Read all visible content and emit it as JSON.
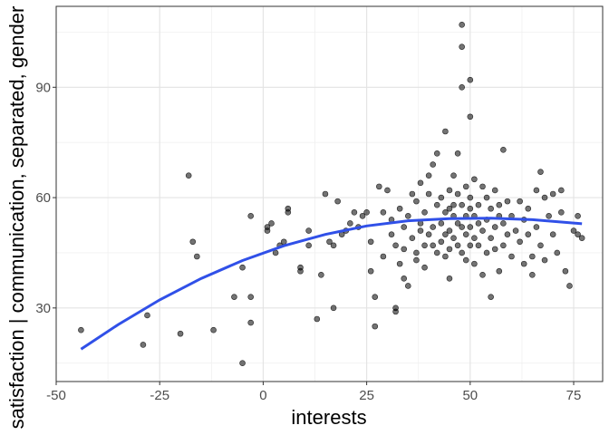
{
  "chart_data": {
    "type": "scatter",
    "xlabel": "interests",
    "ylabel": "satisfaction | communication, separated, gender",
    "xlim": [
      -50,
      82
    ],
    "ylim": [
      10,
      112
    ],
    "x_ticks": [
      -50,
      -25,
      0,
      25,
      50,
      75
    ],
    "x_tick_labels": [
      "-50",
      "-25",
      "0",
      "25",
      "50",
      "75"
    ],
    "y_ticks": [
      30,
      60,
      90
    ],
    "y_tick_labels": [
      "30",
      "60",
      "90"
    ],
    "grid": true,
    "point_color": "#000000",
    "line_color": "#3050e8",
    "points": [
      [
        -44,
        24
      ],
      [
        -29,
        20
      ],
      [
        -28,
        28
      ],
      [
        -20,
        23
      ],
      [
        -18,
        66
      ],
      [
        -17,
        48
      ],
      [
        -16,
        44
      ],
      [
        -12,
        24
      ],
      [
        -7,
        33
      ],
      [
        -5,
        41
      ],
      [
        -5,
        15
      ],
      [
        -3,
        33
      ],
      [
        -3,
        26
      ],
      [
        -3,
        55
      ],
      [
        1,
        51
      ],
      [
        1,
        52
      ],
      [
        2,
        53
      ],
      [
        3,
        45
      ],
      [
        4,
        47
      ],
      [
        5,
        48
      ],
      [
        6,
        57
      ],
      [
        6,
        56
      ],
      [
        9,
        40
      ],
      [
        9,
        41
      ],
      [
        11,
        51
      ],
      [
        11,
        47
      ],
      [
        13,
        27
      ],
      [
        14,
        39
      ],
      [
        15,
        61
      ],
      [
        16,
        48
      ],
      [
        17,
        30
      ],
      [
        17,
        47
      ],
      [
        18,
        59
      ],
      [
        19,
        50
      ],
      [
        20,
        51
      ],
      [
        21,
        53
      ],
      [
        22,
        56
      ],
      [
        23,
        52
      ],
      [
        24,
        55
      ],
      [
        25,
        56
      ],
      [
        26,
        48
      ],
      [
        26,
        40
      ],
      [
        27,
        25
      ],
      [
        27,
        33
      ],
      [
        28,
        63
      ],
      [
        29,
        56
      ],
      [
        29,
        44
      ],
      [
        30,
        62
      ],
      [
        31,
        50
      ],
      [
        31,
        54
      ],
      [
        32,
        30
      ],
      [
        32,
        29
      ],
      [
        32,
        47
      ],
      [
        33,
        42
      ],
      [
        33,
        57
      ],
      [
        34,
        38
      ],
      [
        34,
        46
      ],
      [
        34,
        52
      ],
      [
        35,
        55
      ],
      [
        35,
        36
      ],
      [
        36,
        49
      ],
      [
        36,
        61
      ],
      [
        37,
        45
      ],
      [
        37,
        59
      ],
      [
        37,
        43
      ],
      [
        38,
        51
      ],
      [
        38,
        64
      ],
      [
        38,
        53
      ],
      [
        39,
        47
      ],
      [
        39,
        56
      ],
      [
        39,
        41
      ],
      [
        40,
        61
      ],
      [
        40,
        50
      ],
      [
        40,
        66
      ],
      [
        41,
        69
      ],
      [
        41,
        52
      ],
      [
        41,
        47
      ],
      [
        42,
        72
      ],
      [
        42,
        58
      ],
      [
        42,
        45
      ],
      [
        43,
        53
      ],
      [
        43,
        60
      ],
      [
        43,
        48
      ],
      [
        44,
        78
      ],
      [
        44,
        56
      ],
      [
        44,
        50
      ],
      [
        44,
        44
      ],
      [
        45,
        62
      ],
      [
        45,
        51
      ],
      [
        45,
        57
      ],
      [
        45,
        46
      ],
      [
        45,
        38
      ],
      [
        46,
        66
      ],
      [
        46,
        58
      ],
      [
        46,
        49
      ],
      [
        46,
        55
      ],
      [
        47,
        61
      ],
      [
        47,
        53
      ],
      [
        47,
        47
      ],
      [
        47,
        72
      ],
      [
        48,
        107
      ],
      [
        48,
        101
      ],
      [
        48,
        90
      ],
      [
        48,
        58
      ],
      [
        48,
        52
      ],
      [
        48,
        45
      ],
      [
        49,
        63
      ],
      [
        49,
        55
      ],
      [
        49,
        50
      ],
      [
        49,
        43
      ],
      [
        50,
        92
      ],
      [
        50,
        82
      ],
      [
        50,
        60
      ],
      [
        50,
        57
      ],
      [
        50,
        52
      ],
      [
        50,
        47
      ],
      [
        51,
        65
      ],
      [
        51,
        55
      ],
      [
        51,
        49
      ],
      [
        51,
        42
      ],
      [
        52,
        58
      ],
      [
        52,
        53
      ],
      [
        52,
        47
      ],
      [
        53,
        63
      ],
      [
        53,
        51
      ],
      [
        53,
        39
      ],
      [
        54,
        60
      ],
      [
        54,
        54
      ],
      [
        54,
        45
      ],
      [
        55,
        57
      ],
      [
        55,
        49
      ],
      [
        55,
        33
      ],
      [
        56,
        62
      ],
      [
        56,
        52
      ],
      [
        56,
        46
      ],
      [
        57,
        58
      ],
      [
        57,
        55
      ],
      [
        57,
        40
      ],
      [
        58,
        73
      ],
      [
        58,
        53
      ],
      [
        58,
        47
      ],
      [
        59,
        59
      ],
      [
        59,
        50
      ],
      [
        60,
        55
      ],
      [
        60,
        44
      ],
      [
        61,
        51
      ],
      [
        62,
        59
      ],
      [
        62,
        48
      ],
      [
        63,
        54
      ],
      [
        63,
        42
      ],
      [
        64,
        57
      ],
      [
        64,
        50
      ],
      [
        65,
        44
      ],
      [
        65,
        39
      ],
      [
        66,
        62
      ],
      [
        66,
        52
      ],
      [
        67,
        47
      ],
      [
        67,
        67
      ],
      [
        68,
        60
      ],
      [
        68,
        43
      ],
      [
        69,
        55
      ],
      [
        70,
        61
      ],
      [
        70,
        50
      ],
      [
        71,
        45
      ],
      [
        72,
        62
      ],
      [
        72,
        56
      ],
      [
        73,
        40
      ],
      [
        74,
        36
      ],
      [
        75,
        51
      ],
      [
        76,
        55
      ],
      [
        76,
        50
      ],
      [
        77,
        49
      ]
    ],
    "fit_line": [
      [
        -44,
        18.8
      ],
      [
        -35,
        25.5
      ],
      [
        -25,
        32.2
      ],
      [
        -15,
        38.0
      ],
      [
        -5,
        42.9
      ],
      [
        5,
        46.9
      ],
      [
        15,
        50.0
      ],
      [
        25,
        52.3
      ],
      [
        35,
        53.7
      ],
      [
        45,
        54.3
      ],
      [
        55,
        54.4
      ],
      [
        65,
        54.0
      ],
      [
        77,
        52.9
      ]
    ]
  }
}
